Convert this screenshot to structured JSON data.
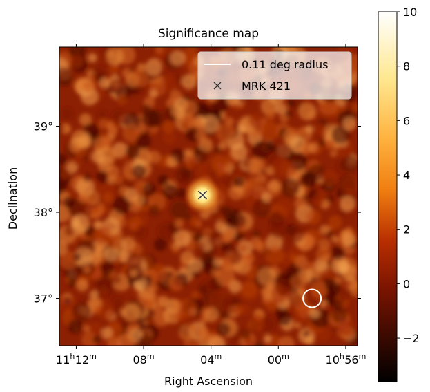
{
  "chart_data": {
    "type": "heatmap",
    "title": "Significance map",
    "xlabel": "Right Ascension",
    "ylabel": "Declination",
    "x_ticks": [
      {
        "hours": 11,
        "minutes": 12,
        "h_label": "11",
        "h_unit": "h",
        "m_label": "12",
        "m_unit": "m"
      },
      {
        "hours": 11,
        "minutes": 8,
        "h_label": "",
        "h_unit": "",
        "m_label": "08",
        "m_unit": "m"
      },
      {
        "hours": 11,
        "minutes": 4,
        "h_label": "",
        "h_unit": "",
        "m_label": "04",
        "m_unit": "m"
      },
      {
        "hours": 11,
        "minutes": 0,
        "h_label": "",
        "h_unit": "",
        "m_label": "00",
        "m_unit": "m"
      },
      {
        "hours": 10,
        "minutes": 56,
        "h_label": "10",
        "h_unit": "h",
        "m_label": "56",
        "m_unit": "m"
      }
    ],
    "ra_range_minutes": [
      673.0,
      655.3
    ],
    "dec_ticks": [
      {
        "value": 39,
        "label": "39°"
      },
      {
        "value": 38,
        "label": "38°"
      },
      {
        "value": 37,
        "label": "37°"
      }
    ],
    "dec_range": [
      36.45,
      39.92
    ],
    "colorbar": {
      "ticks": [
        {
          "value": 10,
          "label": "10"
        },
        {
          "value": 8,
          "label": "8"
        },
        {
          "value": 6,
          "label": "6"
        },
        {
          "value": 4,
          "label": "4"
        },
        {
          "value": 2,
          "label": "2"
        },
        {
          "value": 0,
          "label": "0"
        },
        {
          "value": -2,
          "label": "−2"
        }
      ],
      "range": [
        -3.6,
        10
      ],
      "colormap": "afmhot"
    },
    "source": {
      "name": "MRK 421",
      "ra_minutes": 664.5,
      "dec": 38.2,
      "peak_significance": 9.5
    },
    "region": {
      "ra_minutes": 658.0,
      "dec": 37.0,
      "radius_deg": 0.11
    },
    "legend": {
      "location": "top-right",
      "entries": [
        {
          "label": "0.11 deg radius",
          "marker": "line",
          "color": "#ffffff"
        },
        {
          "label": "MRK 421",
          "marker": "x",
          "color": "#333333"
        }
      ]
    }
  }
}
